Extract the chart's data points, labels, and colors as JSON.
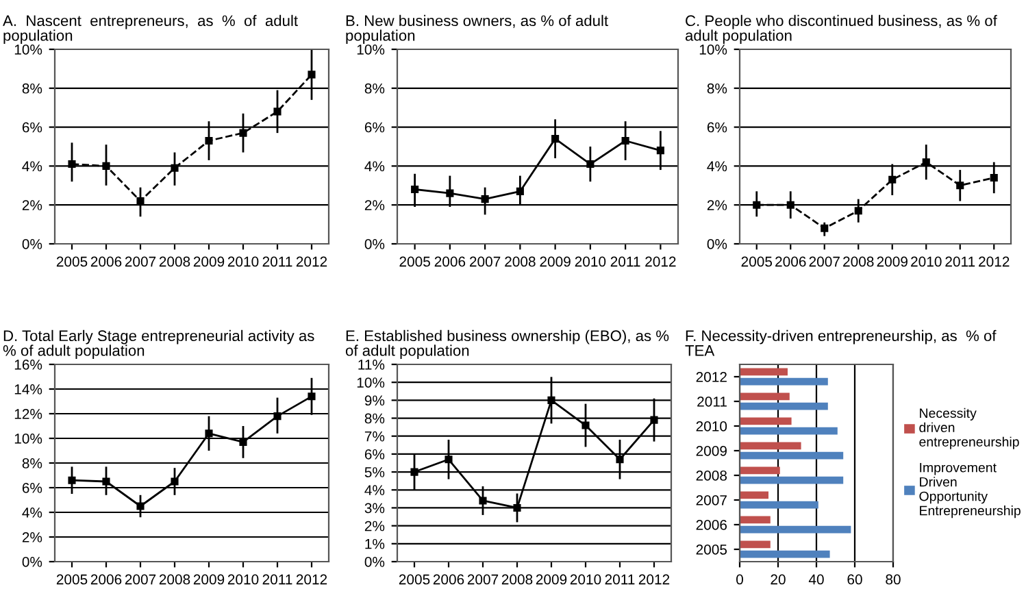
{
  "chart_data": [
    {
      "type": "line",
      "title": "A.  Nascent  entrepreneurs,  as  %  of  adult population",
      "categories": [
        "2005",
        "2006",
        "2007",
        "2008",
        "2009",
        "2010",
        "2011",
        "2012"
      ],
      "series": [
        {
          "color": "#000000",
          "values": [
            4.1,
            4.0,
            2.2,
            3.9,
            5.3,
            5.7,
            6.8,
            8.7
          ],
          "errors": [
            [
              3.2,
              5.2
            ],
            [
              3.0,
              5.1
            ],
            [
              1.4,
              2.9
            ],
            [
              3.0,
              4.7
            ],
            [
              4.3,
              6.3
            ],
            [
              4.7,
              6.7
            ],
            [
              5.7,
              7.9
            ],
            [
              7.4,
              10.0
            ]
          ]
        }
      ],
      "ylim": [
        0,
        10
      ],
      "yticks": [
        {
          "value": 0,
          "label": "0%"
        },
        {
          "value": 2,
          "label": "2%"
        },
        {
          "value": 4,
          "label": "4%"
        },
        {
          "value": 6,
          "label": "6%"
        },
        {
          "value": 8,
          "label": "8%"
        },
        {
          "value": 10,
          "label": "10%"
        }
      ],
      "grid": "y",
      "marker": "square",
      "line_style": "dashed"
    },
    {
      "type": "line",
      "title": "B. New business owners, as % of adult population",
      "categories": [
        "2005",
        "2006",
        "2007",
        "2008",
        "2009",
        "2010",
        "2011",
        "2012"
      ],
      "series": [
        {
          "color": "#000000",
          "values": [
            2.8,
            2.6,
            2.3,
            2.7,
            5.4,
            4.1,
            5.3,
            4.8
          ],
          "errors": [
            [
              1.9,
              3.6
            ],
            [
              1.9,
              3.5
            ],
            [
              1.5,
              2.9
            ],
            [
              2.0,
              3.5
            ],
            [
              4.4,
              6.4
            ],
            [
              3.2,
              5.0
            ],
            [
              4.3,
              6.3
            ],
            [
              3.8,
              5.8
            ]
          ]
        }
      ],
      "ylim": [
        0,
        10
      ],
      "yticks": [
        {
          "value": 0,
          "label": "0%"
        },
        {
          "value": 2,
          "label": "2%"
        },
        {
          "value": 4,
          "label": "4%"
        },
        {
          "value": 6,
          "label": "6%"
        },
        {
          "value": 8,
          "label": "8%"
        },
        {
          "value": 10,
          "label": "10%"
        }
      ],
      "grid": "y",
      "marker": "square",
      "line_style": "solid"
    },
    {
      "type": "line",
      "title": "C. People who discontinued business, as % of adult population",
      "categories": [
        "2005",
        "2006",
        "2007",
        "2008",
        "2009",
        "2010",
        "2011",
        "2012"
      ],
      "series": [
        {
          "color": "#000000",
          "values": [
            2.0,
            2.0,
            0.8,
            1.7,
            3.3,
            4.2,
            3.0,
            3.4
          ],
          "errors": [
            [
              1.4,
              2.7
            ],
            [
              1.3,
              2.7
            ],
            [
              0.4,
              1.1
            ],
            [
              1.1,
              2.3
            ],
            [
              2.5,
              4.1
            ],
            [
              3.3,
              5.1
            ],
            [
              2.2,
              3.8
            ],
            [
              2.6,
              4.2
            ]
          ]
        }
      ],
      "ylim": [
        0,
        10
      ],
      "yticks": [
        {
          "value": 0,
          "label": "0%"
        },
        {
          "value": 2,
          "label": "2%"
        },
        {
          "value": 4,
          "label": "4%"
        },
        {
          "value": 6,
          "label": "6%"
        },
        {
          "value": 8,
          "label": "8%"
        },
        {
          "value": 10,
          "label": "10%"
        }
      ],
      "grid": "y",
      "marker": "square",
      "line_style": "dashed"
    },
    {
      "type": "line",
      "title": "D. Total Early Stage entrepreneurial activity as % of adult population",
      "categories": [
        "2005",
        "2006",
        "2007",
        "2008",
        "2009",
        "2010",
        "2011",
        "2012"
      ],
      "series": [
        {
          "color": "#000000",
          "values": [
            6.6,
            6.5,
            4.5,
            6.5,
            10.4,
            9.7,
            11.8,
            13.4
          ],
          "errors": [
            [
              5.5,
              7.7
            ],
            [
              5.4,
              7.7
            ],
            [
              3.6,
              5.4
            ],
            [
              5.4,
              7.6
            ],
            [
              9.0,
              11.8
            ],
            [
              8.4,
              11.0
            ],
            [
              10.4,
              13.3
            ],
            [
              11.9,
              14.9
            ]
          ]
        }
      ],
      "ylim": [
        0,
        16
      ],
      "yticks": [
        {
          "value": 0,
          "label": "0%"
        },
        {
          "value": 2,
          "label": "2%"
        },
        {
          "value": 4,
          "label": "4%"
        },
        {
          "value": 6,
          "label": "6%"
        },
        {
          "value": 8,
          "label": "8%"
        },
        {
          "value": 10,
          "label": "10%"
        },
        {
          "value": 12,
          "label": "12%"
        },
        {
          "value": 14,
          "label": "14%"
        },
        {
          "value": 16,
          "label": "16%"
        }
      ],
      "grid": "y",
      "marker": "square",
      "line_style": "solid"
    },
    {
      "type": "line",
      "title": "E. Established business ownership (EBO), as % of adult population",
      "categories": [
        "2005",
        "2006",
        "2007",
        "2008",
        "2009",
        "2010",
        "2011",
        "2012"
      ],
      "series": [
        {
          "color": "#000000",
          "values": [
            5.0,
            5.7,
            3.4,
            3.0,
            9.0,
            7.6,
            5.7,
            7.9
          ],
          "errors": [
            [
              4.0,
              6.0
            ],
            [
              4.6,
              6.8
            ],
            [
              2.6,
              4.2
            ],
            [
              2.2,
              3.8
            ],
            [
              7.7,
              10.3
            ],
            [
              6.4,
              8.8
            ],
            [
              4.6,
              6.8
            ],
            [
              6.7,
              9.1
            ]
          ]
        }
      ],
      "ylim": [
        0,
        11
      ],
      "yticks": [
        {
          "value": 0,
          "label": "0%"
        },
        {
          "value": 1,
          "label": "1%"
        },
        {
          "value": 2,
          "label": "2%"
        },
        {
          "value": 3,
          "label": "3%"
        },
        {
          "value": 4,
          "label": "4%"
        },
        {
          "value": 5,
          "label": "5%"
        },
        {
          "value": 6,
          "label": "6%"
        },
        {
          "value": 7,
          "label": "7%"
        },
        {
          "value": 8,
          "label": "8%"
        },
        {
          "value": 9,
          "label": "9%"
        },
        {
          "value": 10,
          "label": "10%"
        },
        {
          "value": 11,
          "label": "11%"
        }
      ],
      "grid": "y",
      "marker": "square",
      "line_style": "solid"
    },
    {
      "type": "bar",
      "orientation": "horizontal",
      "title": "F. Necessity-driven entrepreneurship, as  % of TEA",
      "categories": [
        "2012",
        "2011",
        "2010",
        "2009",
        "2008",
        "2007",
        "2006",
        "2005"
      ],
      "series": [
        {
          "name": "Necessity driven entrepreneurship",
          "color": "#c0504d",
          "values": [
            25,
            26,
            27,
            32,
            21,
            15,
            16,
            16
          ]
        },
        {
          "name": "Improvement Driven Opportunity Entrepreneurship",
          "color": "#4f81bd",
          "values": [
            46,
            46,
            51,
            54,
            54,
            41,
            58,
            47
          ]
        }
      ],
      "xlim": [
        0,
        80
      ],
      "xticks": [
        0,
        20,
        40,
        60,
        80
      ],
      "grid": "x",
      "legend": "right"
    }
  ]
}
